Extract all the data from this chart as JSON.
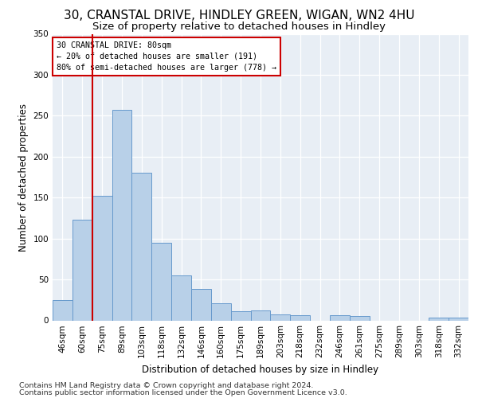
{
  "title": "30, CRANSTAL DRIVE, HINDLEY GREEN, WIGAN, WN2 4HU",
  "subtitle": "Size of property relative to detached houses in Hindley",
  "xlabel": "Distribution of detached houses by size in Hindley",
  "ylabel": "Number of detached properties",
  "categories": [
    "46sqm",
    "60sqm",
    "75sqm",
    "89sqm",
    "103sqm",
    "118sqm",
    "132sqm",
    "146sqm",
    "160sqm",
    "175sqm",
    "189sqm",
    "203sqm",
    "218sqm",
    "232sqm",
    "246sqm",
    "261sqm",
    "275sqm",
    "289sqm",
    "303sqm",
    "318sqm",
    "332sqm"
  ],
  "values": [
    25,
    123,
    152,
    257,
    180,
    95,
    55,
    38,
    21,
    11,
    12,
    7,
    6,
    0,
    6,
    5,
    0,
    0,
    0,
    3,
    3
  ],
  "bar_color": "#b8d0e8",
  "bar_edge_color": "#6699cc",
  "vline_color": "#cc0000",
  "annotation_text": "30 CRANSTAL DRIVE: 80sqm\n← 20% of detached houses are smaller (191)\n80% of semi-detached houses are larger (778) →",
  "annotation_box_color": "#ffffff",
  "annotation_box_edge": "#cc0000",
  "ylim": [
    0,
    350
  ],
  "yticks": [
    0,
    50,
    100,
    150,
    200,
    250,
    300,
    350
  ],
  "footer1": "Contains HM Land Registry data © Crown copyright and database right 2024.",
  "footer2": "Contains public sector information licensed under the Open Government Licence v3.0.",
  "bg_color": "#e8eef5",
  "title_fontsize": 11,
  "subtitle_fontsize": 9.5,
  "axis_label_fontsize": 8.5,
  "tick_fontsize": 7.5,
  "footer_fontsize": 6.8
}
